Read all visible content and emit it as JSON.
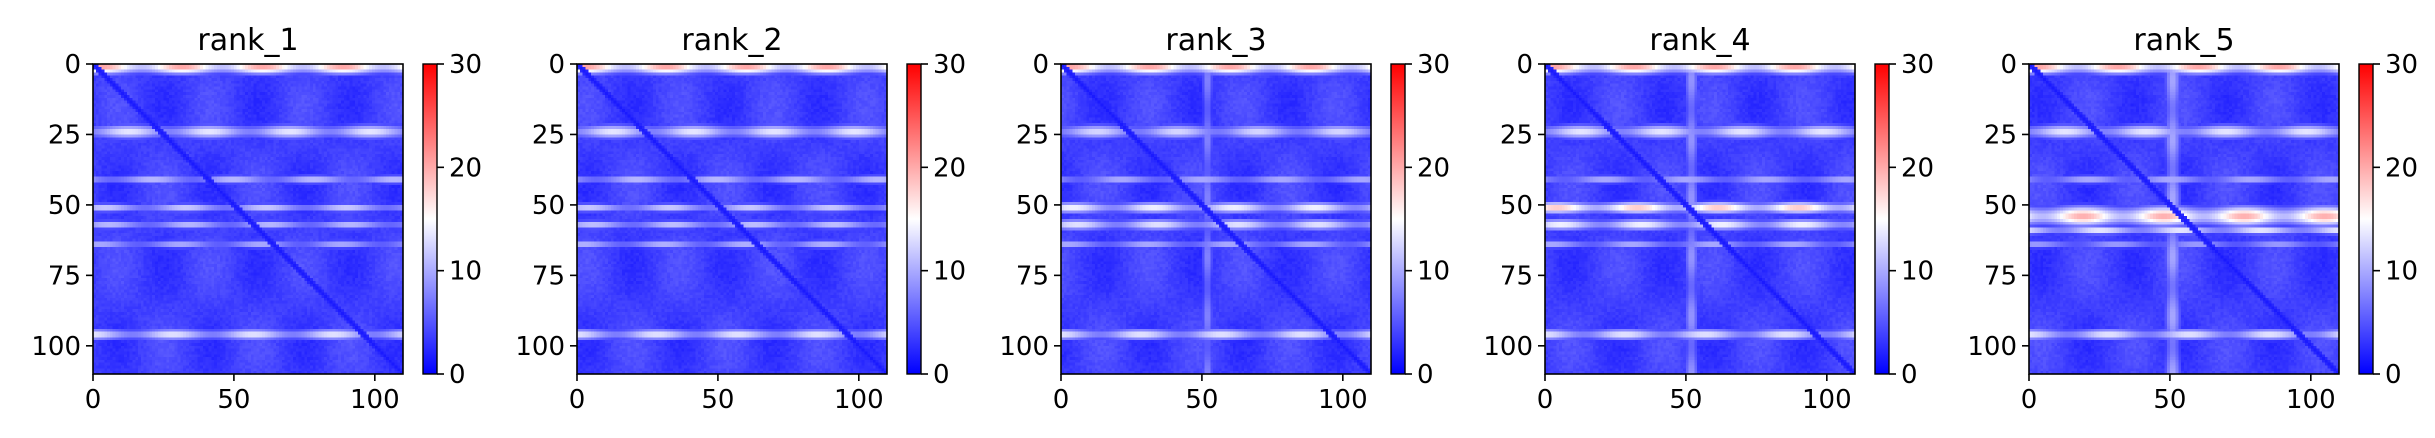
{
  "chart_data": [
    {
      "type": "heatmap",
      "title": "rank_1",
      "x_range": [
        0,
        110
      ],
      "y_range": [
        0,
        110
      ],
      "x_ticks": [
        0,
        50,
        100
      ],
      "y_ticks": [
        0,
        25,
        50,
        75,
        100
      ],
      "colorbar_range": [
        0,
        30
      ],
      "colorbar_ticks": [
        0,
        10,
        20,
        30
      ],
      "bands": [
        {
          "center": 1,
          "width": 2.5,
          "value": 21
        },
        {
          "center": 24,
          "width": 2.5,
          "value": 14
        },
        {
          "center": 41,
          "width": 1.5,
          "value": 12
        },
        {
          "center": 51,
          "width": 1.5,
          "value": 13
        },
        {
          "center": 57,
          "width": 1.5,
          "value": 12
        },
        {
          "center": 64,
          "width": 1.5,
          "value": 11
        },
        {
          "center": 96,
          "width": 2,
          "value": 14
        }
      ],
      "vertical_bands": [],
      "diagonal_value": 1.5
    },
    {
      "type": "heatmap",
      "title": "rank_2",
      "x_range": [
        0,
        110
      ],
      "y_range": [
        0,
        110
      ],
      "x_ticks": [
        0,
        50,
        100
      ],
      "y_ticks": [
        0,
        25,
        50,
        75,
        100
      ],
      "colorbar_range": [
        0,
        30
      ],
      "colorbar_ticks": [
        0,
        10,
        20,
        30
      ],
      "bands": [
        {
          "center": 1,
          "width": 2.5,
          "value": 21
        },
        {
          "center": 24,
          "width": 2.5,
          "value": 14
        },
        {
          "center": 41,
          "width": 1.5,
          "value": 12
        },
        {
          "center": 51,
          "width": 1.5,
          "value": 13
        },
        {
          "center": 57,
          "width": 1.5,
          "value": 12.5
        },
        {
          "center": 64,
          "width": 1.5,
          "value": 11.5
        },
        {
          "center": 96,
          "width": 2,
          "value": 14
        }
      ],
      "vertical_bands": [],
      "diagonal_value": 1.5
    },
    {
      "type": "heatmap",
      "title": "rank_3",
      "x_range": [
        0,
        110
      ],
      "y_range": [
        0,
        110
      ],
      "x_ticks": [
        0,
        50,
        100
      ],
      "y_ticks": [
        0,
        25,
        50,
        75,
        100
      ],
      "colorbar_range": [
        0,
        30
      ],
      "colorbar_ticks": [
        0,
        10,
        20,
        30
      ],
      "bands": [
        {
          "center": 1,
          "width": 2.5,
          "value": 21
        },
        {
          "center": 24,
          "width": 2.5,
          "value": 13
        },
        {
          "center": 41,
          "width": 1.5,
          "value": 11
        },
        {
          "center": 51,
          "width": 2,
          "value": 15
        },
        {
          "center": 57,
          "width": 2,
          "value": 14
        },
        {
          "center": 64,
          "width": 1.5,
          "value": 11
        },
        {
          "center": 96,
          "width": 2,
          "value": 14
        }
      ],
      "vertical_bands": [
        {
          "center": 52,
          "width": 2,
          "value": 8
        }
      ],
      "diagonal_value": 1.5
    },
    {
      "type": "heatmap",
      "title": "rank_4",
      "x_range": [
        0,
        110
      ],
      "y_range": [
        0,
        110
      ],
      "x_ticks": [
        0,
        50,
        100
      ],
      "y_ticks": [
        0,
        25,
        50,
        75,
        100
      ],
      "colorbar_range": [
        0,
        30
      ],
      "colorbar_ticks": [
        0,
        10,
        20,
        30
      ],
      "bands": [
        {
          "center": 1,
          "width": 2.5,
          "value": 21
        },
        {
          "center": 24,
          "width": 2.5,
          "value": 14
        },
        {
          "center": 41,
          "width": 1.5,
          "value": 11
        },
        {
          "center": 51,
          "width": 2,
          "value": 19
        },
        {
          "center": 57,
          "width": 2,
          "value": 15
        },
        {
          "center": 64,
          "width": 1.5,
          "value": 11
        },
        {
          "center": 96,
          "width": 2,
          "value": 14
        }
      ],
      "vertical_bands": [
        {
          "center": 52,
          "width": 2.5,
          "value": 9
        }
      ],
      "diagonal_value": 1.5
    },
    {
      "type": "heatmap",
      "title": "rank_5",
      "x_range": [
        0,
        110
      ],
      "y_range": [
        0,
        110
      ],
      "x_ticks": [
        0,
        50,
        100
      ],
      "y_ticks": [
        0,
        25,
        50,
        75,
        100
      ],
      "colorbar_range": [
        0,
        30
      ],
      "colorbar_ticks": [
        0,
        10,
        20,
        30
      ],
      "bands": [
        {
          "center": 1,
          "width": 2.5,
          "value": 21
        },
        {
          "center": 24,
          "width": 2.5,
          "value": 14
        },
        {
          "center": 41,
          "width": 1.5,
          "value": 11
        },
        {
          "center": 54,
          "width": 3.5,
          "value": 20
        },
        {
          "center": 59,
          "width": 1.5,
          "value": 15
        },
        {
          "center": 64,
          "width": 1.5,
          "value": 10
        },
        {
          "center": 96,
          "width": 2,
          "value": 14
        }
      ],
      "vertical_bands": [
        {
          "center": 51,
          "width": 3,
          "value": 10
        }
      ],
      "diagonal_value": 1.5
    }
  ],
  "colors": {
    "low": "#0000ff",
    "mid": "#ffffff",
    "high": "#ff0000",
    "axis": "#000000"
  }
}
